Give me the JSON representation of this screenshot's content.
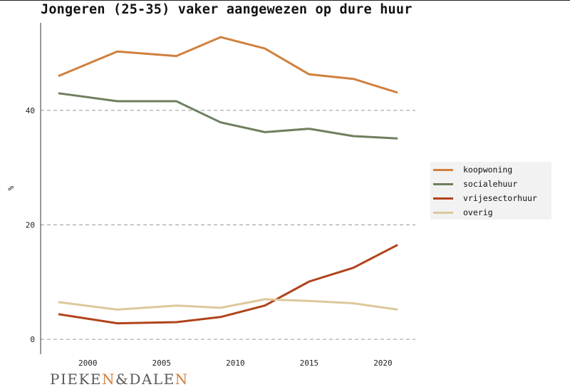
{
  "title": "Jongeren (25-35) vaker aangewezen op dure huur",
  "brand": {
    "part1": "PIEKE",
    "n1": "N",
    "amp": "&",
    "part2": "DALE",
    "n2": "N",
    "accent_color": "#d0803e"
  },
  "chart_data": {
    "type": "line",
    "x": [
      1998,
      2002,
      2006,
      2009,
      2012,
      2015,
      2018,
      2021
    ],
    "series": [
      {
        "name": "koopwoning",
        "color": "#d0803e",
        "values": [
          46.0,
          50.3,
          49.5,
          52.8,
          50.8,
          46.3,
          45.5,
          43.1
        ]
      },
      {
        "name": "socialehuur",
        "color": "#6f7f5e",
        "values": [
          43.0,
          41.6,
          41.6,
          37.9,
          36.2,
          36.8,
          35.5,
          35.1
        ]
      },
      {
        "name": "vrijesectorhuur",
        "color": "#b0431c",
        "values": [
          4.4,
          2.8,
          3.0,
          3.9,
          5.9,
          10.1,
          12.5,
          16.5
        ]
      },
      {
        "name": "overig",
        "color": "#dcc89a",
        "values": [
          6.5,
          5.2,
          5.9,
          5.5,
          7.0,
          6.7,
          6.3,
          5.2
        ]
      }
    ],
    "xlabel": "",
    "ylabel": "%",
    "xlim": [
      1996.8,
      2022.2
    ],
    "ylim": [
      -2.6,
      55.3
    ],
    "xticks": [
      2000,
      2005,
      2010,
      2015,
      2020
    ],
    "yticks": [
      0,
      20,
      40
    ],
    "grid": "horizontal-dashed",
    "legend_position": "right"
  }
}
